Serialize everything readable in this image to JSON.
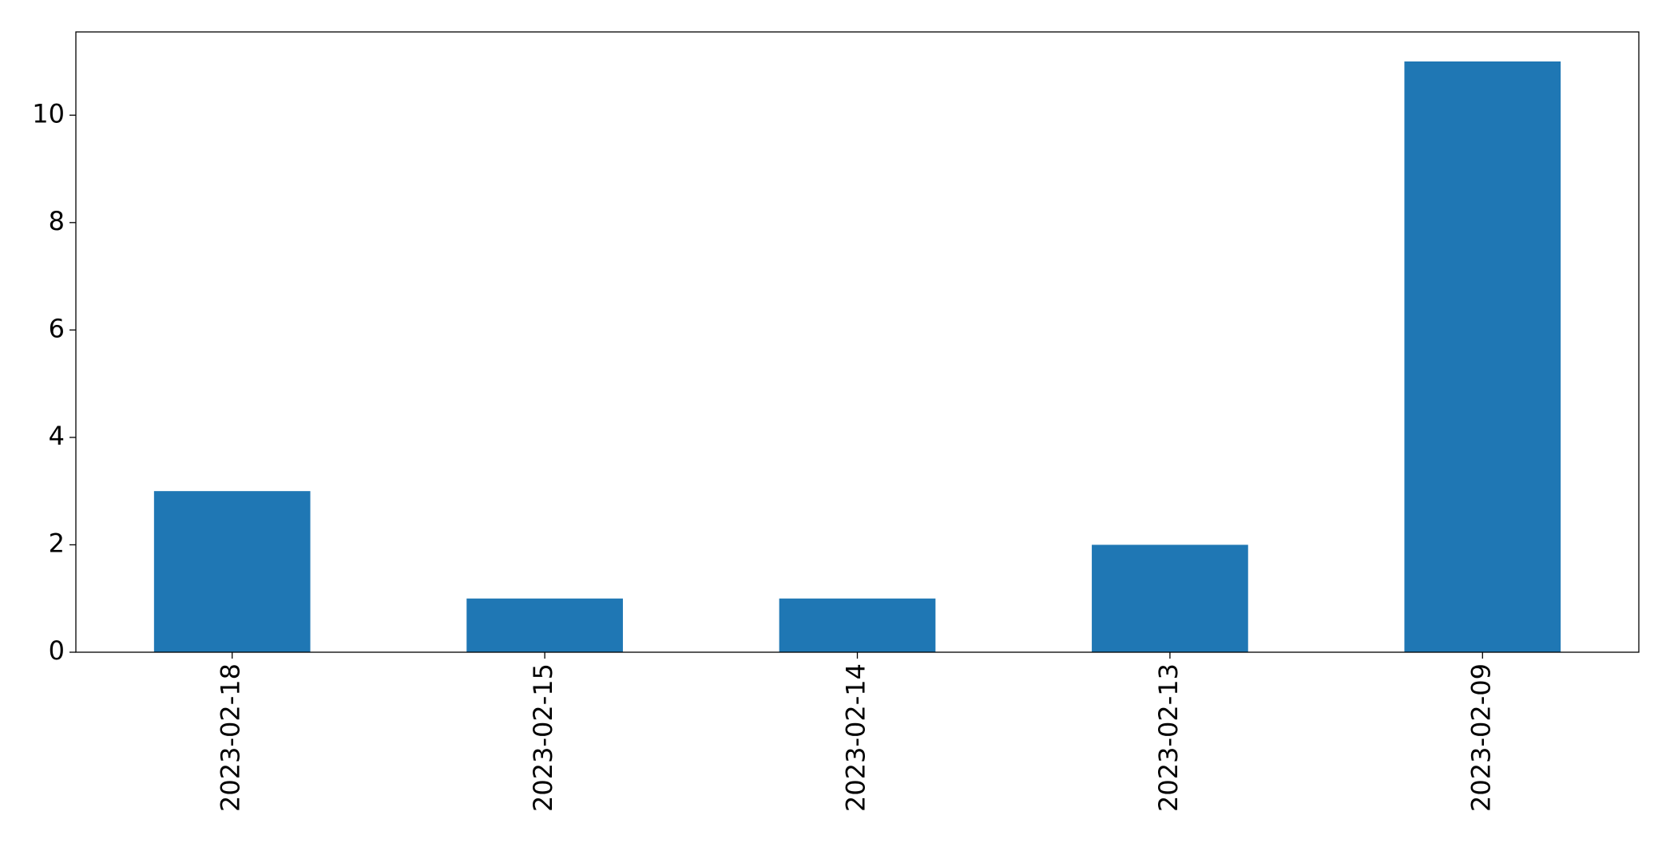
{
  "chart_data": {
    "type": "bar",
    "categories": [
      "2023-02-18",
      "2023-02-15",
      "2023-02-14",
      "2023-02-13",
      "2023-02-09"
    ],
    "values": [
      3,
      1,
      1,
      2,
      11
    ],
    "color": "#1f77b4",
    "ylim": [
      0,
      11.55
    ],
    "yticks": [
      0,
      2,
      4,
      6,
      8,
      10
    ],
    "grid": false
  }
}
